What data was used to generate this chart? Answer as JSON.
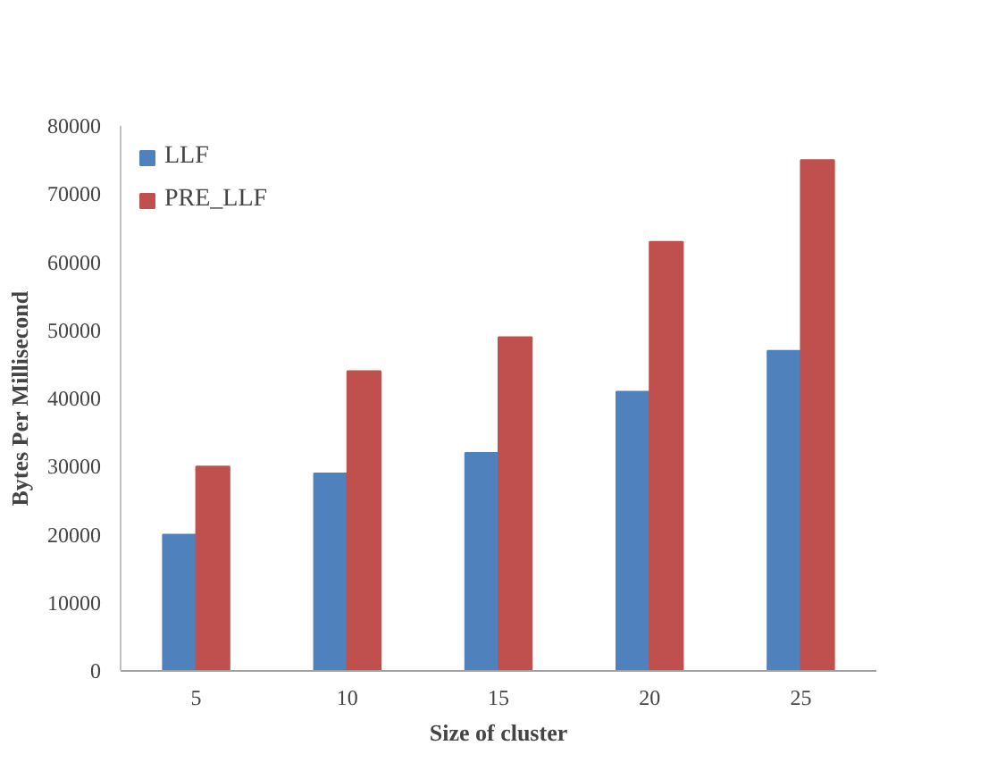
{
  "chart_data": {
    "type": "bar",
    "xlabel": "Size of cluster",
    "ylabel": "Bytes Per Millisecond",
    "categories": [
      "5",
      "10",
      "15",
      "20",
      "25"
    ],
    "series": [
      {
        "name": "LLF",
        "color": "#4f81bd",
        "values": [
          20000,
          29000,
          32000,
          41000,
          47000
        ]
      },
      {
        "name": "PRE_LLF",
        "color": "#c0504d",
        "values": [
          30000,
          44000,
          49000,
          63000,
          75000
        ]
      }
    ],
    "ylim": [
      0,
      80000
    ],
    "yticks": [
      0,
      10000,
      20000,
      30000,
      40000,
      50000,
      60000,
      70000,
      80000
    ],
    "grid": false,
    "legend": "top left"
  }
}
